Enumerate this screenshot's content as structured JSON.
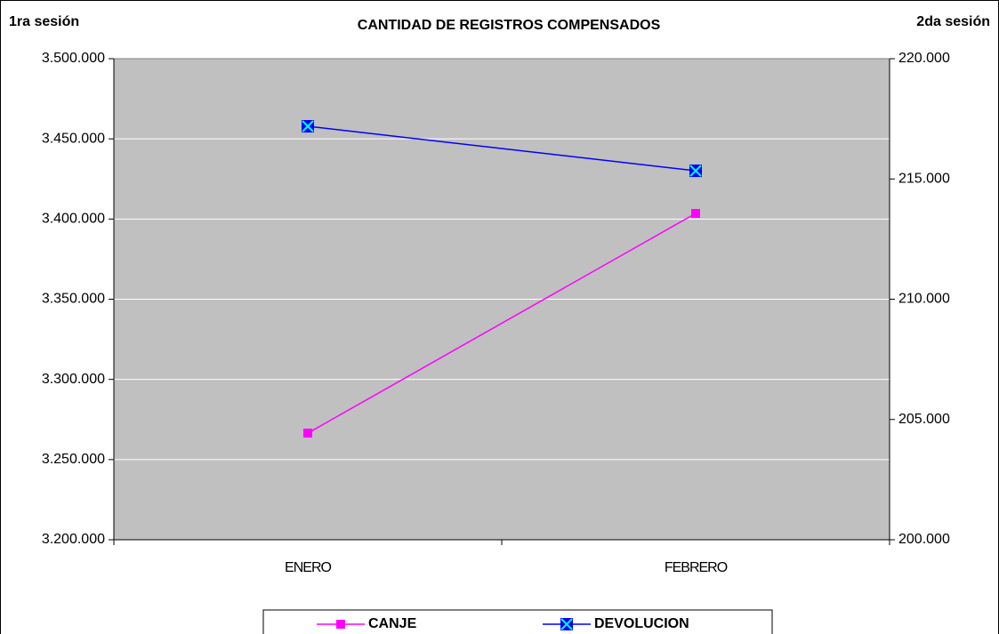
{
  "chart_data": {
    "type": "line",
    "title": "CANTIDAD DE REGISTROS COMPENSADOS",
    "y_label": "1ra sesión",
    "y2_label": "2da sesión",
    "categories": [
      "ENERO",
      "FEBRERO"
    ],
    "series": [
      {
        "name": "CANJE",
        "color": "#ff00ff",
        "values": [
          3266500,
          3403500
        ]
      },
      {
        "name": "DEVOLUCION",
        "color": "#0000ff",
        "axis": "y2",
        "values": [
          217190,
          215340
        ]
      }
    ],
    "ylim": [
      3200000,
      3500000
    ],
    "yticks": [
      {
        "value": 3200000,
        "label": "3.200.000"
      },
      {
        "value": 3250000,
        "label": "3.250.000"
      },
      {
        "value": 3300000,
        "label": "3.300.000"
      },
      {
        "value": 3350000,
        "label": "3.350.000"
      },
      {
        "value": 3400000,
        "label": "3.400.000"
      },
      {
        "value": 3450000,
        "label": "3.450.000"
      },
      {
        "value": 3500000,
        "label": "3.500.000"
      }
    ],
    "y2lim": [
      200000,
      220000
    ],
    "y2ticks": [
      {
        "value": 200000,
        "label": "200.000"
      },
      {
        "value": 205000,
        "label": "205.000"
      },
      {
        "value": 210000,
        "label": "210.000"
      },
      {
        "value": 215000,
        "label": "215.000"
      },
      {
        "value": 220000,
        "label": "220.000"
      }
    ],
    "grid": true,
    "legend": "bottom"
  }
}
